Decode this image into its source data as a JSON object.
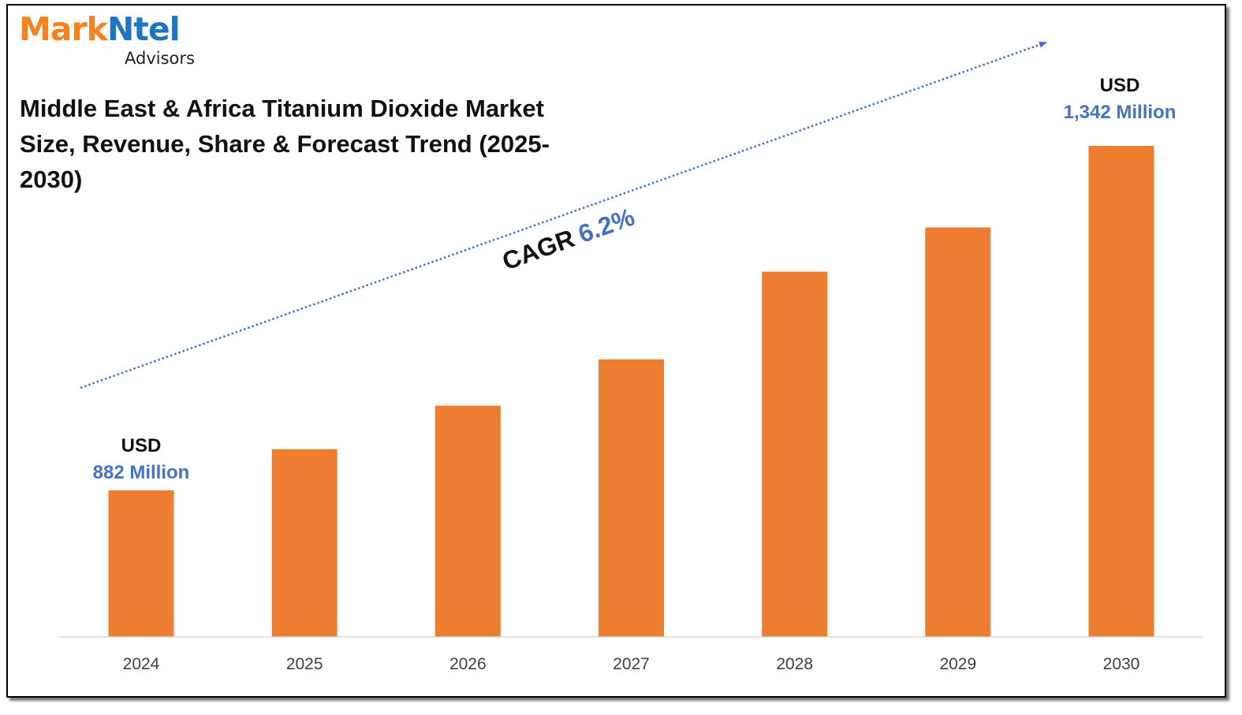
{
  "logo": {
    "part1": "Mark",
    "part2": "Ntel",
    "sub": "Advisors",
    "colors": {
      "mark": "#f58220",
      "ntel": "#1f75c1"
    }
  },
  "title": "Middle East & Africa Titanium Dioxide Market Size, Revenue, Share & Forecast Trend (2025-2030)",
  "cagr": {
    "label": "CAGR",
    "value": "6.2%"
  },
  "annotations": {
    "start": {
      "currency": "USD",
      "value": "882 Million"
    },
    "end": {
      "currency": "USD",
      "value": "1,342 Million"
    }
  },
  "chart_data": {
    "type": "bar",
    "categories": [
      "2024",
      "2025",
      "2026",
      "2027",
      "2028",
      "2029",
      "2030"
    ],
    "values": [
      882,
      937,
      995,
      1057,
      1174,
      1233,
      1342
    ],
    "unit": "USD Million",
    "ylim": [
      0,
      1400
    ],
    "grid": false,
    "bar_color": "#ed7d31",
    "annotation_color": "#4472c4"
  }
}
